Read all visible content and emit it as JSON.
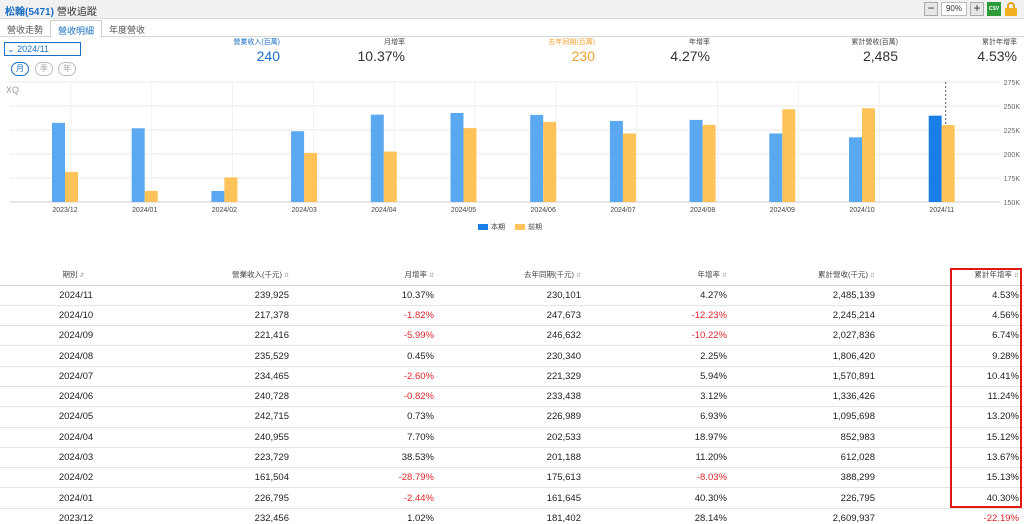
{
  "header": {
    "stock": "松翰(5471)",
    "subtitle": "營收追蹤",
    "zoom": "90%",
    "csv_label": "CSV"
  },
  "tabs": [
    {
      "label": "營收走勢",
      "active": false
    },
    {
      "label": "營收明細",
      "active": true
    },
    {
      "label": "年度營收",
      "active": false
    }
  ],
  "date_select": "2024/11",
  "period_buttons": [
    "月",
    "季",
    "年"
  ],
  "kpis": [
    {
      "label": "營業收入(百萬)",
      "value": "240",
      "color": "blue"
    },
    {
      "label": "月增率",
      "value": "10.37%",
      "color": "dark"
    },
    {
      "label": "去年同期(百萬)",
      "value": "230",
      "color": "orange"
    },
    {
      "label": "年增率",
      "value": "4.27%",
      "color": "dark"
    },
    {
      "label": "累計營收(百萬)",
      "value": "2,485",
      "color": "dark"
    },
    {
      "label": "累計年增率",
      "value": "4.53%",
      "color": "dark"
    }
  ],
  "chart_data": {
    "type": "bar",
    "title": "",
    "watermark": "XQ",
    "categories": [
      "2023/12",
      "2024/01",
      "2024/02",
      "2024/03",
      "2024/04",
      "2024/05",
      "2024/06",
      "2024/07",
      "2024/08",
      "2024/09",
      "2024/10",
      "2024/11"
    ],
    "series": [
      {
        "name": "本期",
        "color": "#5aa8f0",
        "highlight_color": "#1a7ee8",
        "values": [
          232456,
          226795,
          161504,
          223729,
          240955,
          242715,
          240728,
          234465,
          235529,
          221416,
          217378,
          239925
        ]
      },
      {
        "name": "前期",
        "color": "#ffc35a",
        "values": [
          181402,
          161645,
          175613,
          201188,
          202533,
          226989,
          233438,
          221329,
          230340,
          246632,
          247673,
          230101
        ]
      }
    ],
    "ylim": [
      150000,
      275000
    ],
    "yticks": [
      "150K",
      "175K",
      "200K",
      "225K",
      "250K",
      "275K"
    ],
    "ytick_values": [
      150000,
      175000,
      200000,
      225000,
      250000,
      275000
    ],
    "legend_position": "bottom-center",
    "grid": true
  },
  "table": {
    "headers": [
      "期別",
      "營業收入(千元)",
      "月增率",
      "去年同期(千元)",
      "年增率",
      "累計營收(千元)",
      "累計年增率"
    ],
    "rows": [
      [
        "2024/11",
        "239,925",
        "10.37%",
        "230,101",
        "4.27%",
        "2,485,139",
        "4.53%"
      ],
      [
        "2024/10",
        "217,378",
        "-1.82%",
        "247,673",
        "-12.23%",
        "2,245,214",
        "4.56%"
      ],
      [
        "2024/09",
        "221,416",
        "-5.99%",
        "246,632",
        "-10.22%",
        "2,027,836",
        "6.74%"
      ],
      [
        "2024/08",
        "235,529",
        "0.45%",
        "230,340",
        "2.25%",
        "1,806,420",
        "9.28%"
      ],
      [
        "2024/07",
        "234,465",
        "-2.60%",
        "221,329",
        "5.94%",
        "1,570,891",
        "10.41%"
      ],
      [
        "2024/06",
        "240,728",
        "-0.82%",
        "233,438",
        "3.12%",
        "1,336,426",
        "11.24%"
      ],
      [
        "2024/05",
        "242,715",
        "0.73%",
        "226,989",
        "6.93%",
        "1,095,698",
        "13.20%"
      ],
      [
        "2024/04",
        "240,955",
        "7.70%",
        "202,533",
        "18.97%",
        "852,983",
        "15.12%"
      ],
      [
        "2024/03",
        "223,729",
        "38.53%",
        "201,188",
        "11.20%",
        "612,028",
        "13.67%"
      ],
      [
        "2024/02",
        "161,504",
        "-28.79%",
        "175,613",
        "-8.03%",
        "388,299",
        "15.13%"
      ],
      [
        "2024/01",
        "226,795",
        "-2.44%",
        "161,645",
        "40.30%",
        "226,795",
        "40.30%"
      ],
      [
        "2023/12",
        "232,456",
        "1.02%",
        "181,402",
        "28.14%",
        "2,609,937",
        "-22.19%"
      ]
    ]
  },
  "colors": {
    "accent": "#1a6fc4",
    "negative": "#e0262a",
    "highlight_box": "#e01818"
  }
}
